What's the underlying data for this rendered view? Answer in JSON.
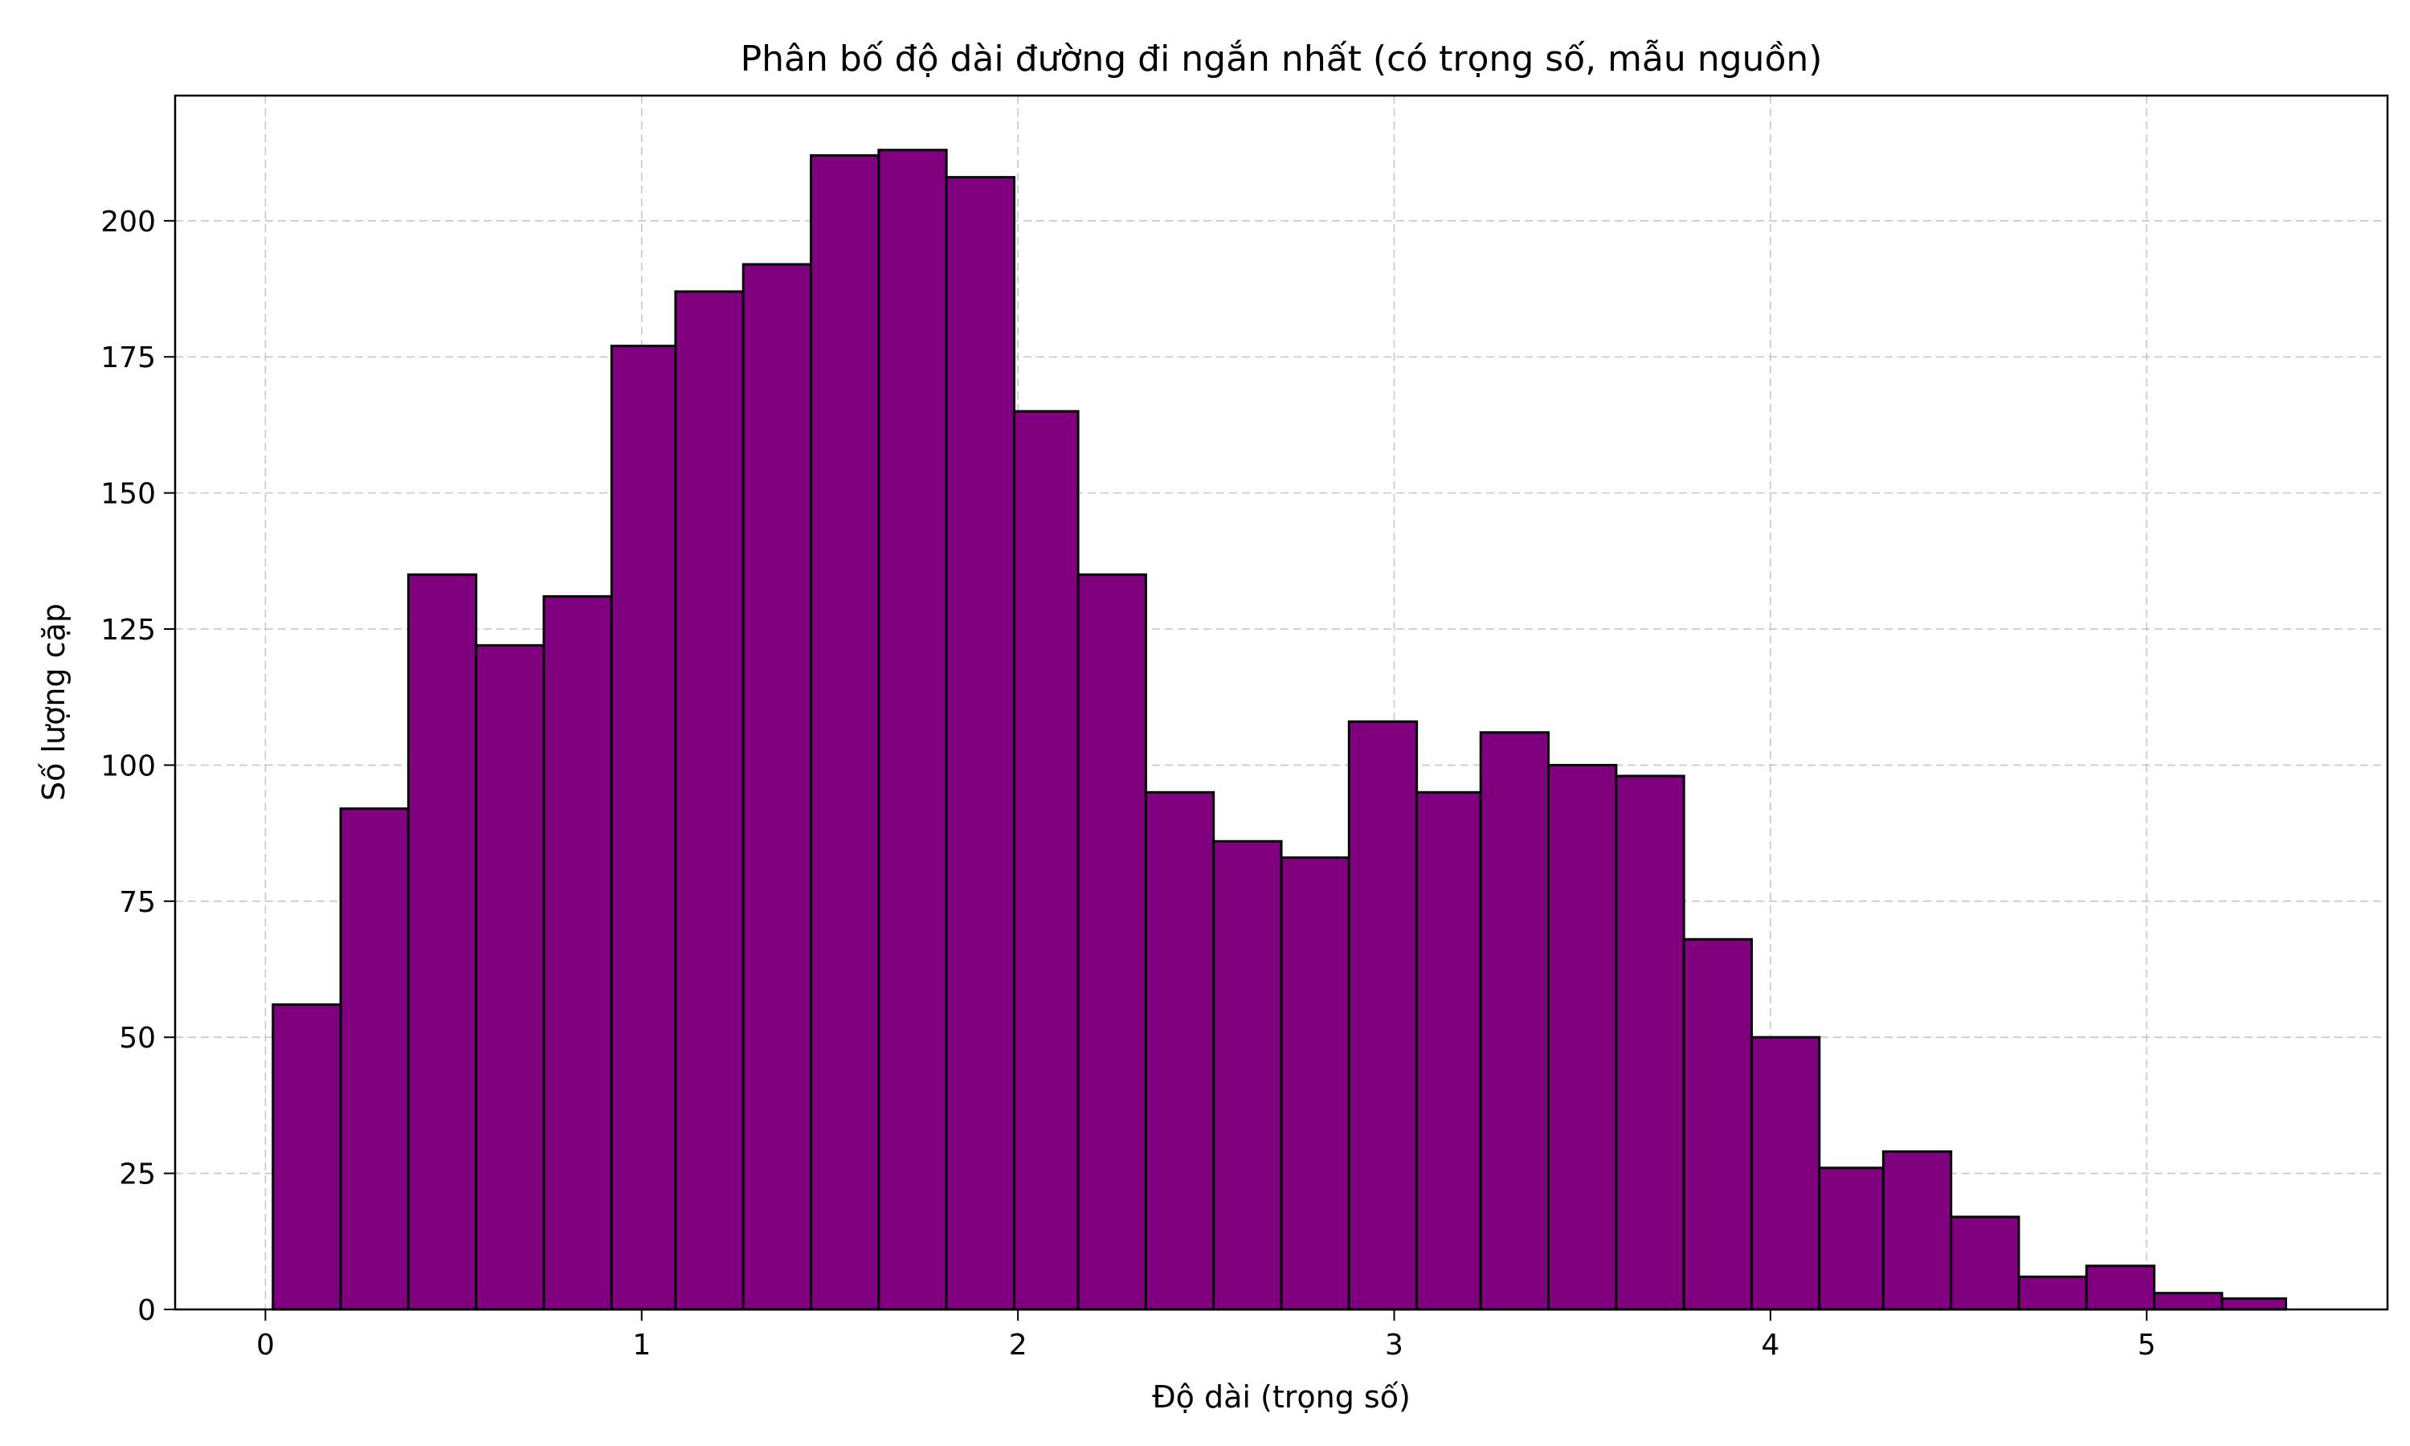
{
  "chart_data": {
    "type": "bar",
    "title": "Phân bố độ dài đường đi ngắn nhất (có trọng số, mẫu nguồn)",
    "xlabel": "Độ dài (trọng số)",
    "ylabel": "Số lượng cặp",
    "xlim": [
      -0.24,
      5.64
    ],
    "ylim": [
      0,
      223
    ],
    "xticks": [
      0,
      1,
      2,
      3,
      4,
      5
    ],
    "yticks": [
      0,
      25,
      50,
      75,
      100,
      125,
      150,
      175,
      200
    ],
    "grid": true,
    "bar_color": "#800080",
    "edge_color": "#000000",
    "bins": [
      {
        "x0": 0.02,
        "x1": 0.2,
        "count": 56
      },
      {
        "x0": 0.2,
        "x1": 0.38,
        "count": 92
      },
      {
        "x0": 0.38,
        "x1": 0.56,
        "count": 135
      },
      {
        "x0": 0.56,
        "x1": 0.74,
        "count": 122
      },
      {
        "x0": 0.74,
        "x1": 0.92,
        "count": 131
      },
      {
        "x0": 0.92,
        "x1": 1.09,
        "count": 177
      },
      {
        "x0": 1.09,
        "x1": 1.27,
        "count": 187
      },
      {
        "x0": 1.27,
        "x1": 1.45,
        "count": 192
      },
      {
        "x0": 1.45,
        "x1": 1.63,
        "count": 212
      },
      {
        "x0": 1.63,
        "x1": 1.81,
        "count": 213
      },
      {
        "x0": 1.81,
        "x1": 1.99,
        "count": 208
      },
      {
        "x0": 1.99,
        "x1": 2.16,
        "count": 165
      },
      {
        "x0": 2.16,
        "x1": 2.34,
        "count": 135
      },
      {
        "x0": 2.34,
        "x1": 2.52,
        "count": 95
      },
      {
        "x0": 2.52,
        "x1": 2.7,
        "count": 86
      },
      {
        "x0": 2.7,
        "x1": 2.88,
        "count": 83
      },
      {
        "x0": 2.88,
        "x1": 3.06,
        "count": 108
      },
      {
        "x0": 3.06,
        "x1": 3.23,
        "count": 95
      },
      {
        "x0": 3.23,
        "x1": 3.41,
        "count": 106
      },
      {
        "x0": 3.41,
        "x1": 3.59,
        "count": 100
      },
      {
        "x0": 3.59,
        "x1": 3.77,
        "count": 98
      },
      {
        "x0": 3.77,
        "x1": 3.95,
        "count": 68
      },
      {
        "x0": 3.95,
        "x1": 4.13,
        "count": 50
      },
      {
        "x0": 4.13,
        "x1": 4.3,
        "count": 26
      },
      {
        "x0": 4.3,
        "x1": 4.48,
        "count": 29
      },
      {
        "x0": 4.48,
        "x1": 4.66,
        "count": 17
      },
      {
        "x0": 4.66,
        "x1": 4.84,
        "count": 6
      },
      {
        "x0": 4.84,
        "x1": 5.02,
        "count": 8
      },
      {
        "x0": 5.02,
        "x1": 5.2,
        "count": 3
      },
      {
        "x0": 5.2,
        "x1": 5.37,
        "count": 2
      }
    ]
  }
}
